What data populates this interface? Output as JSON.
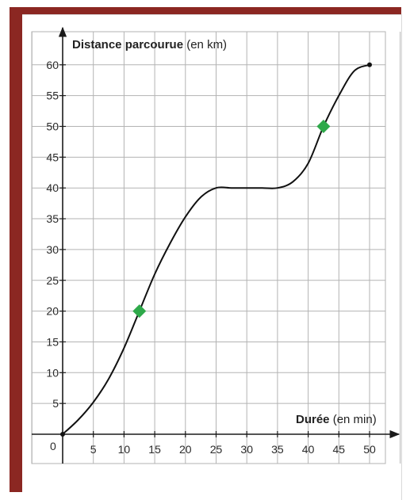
{
  "chart_data": {
    "type": "line",
    "xlabel": "Durée",
    "xlabel_unit": "(en min)",
    "ylabel": "Distance parcourue",
    "ylabel_unit": "(en km)",
    "origin_label": "0",
    "xlim": [
      0,
      55
    ],
    "ylim": [
      0,
      60
    ],
    "grid": true,
    "x_ticks": [
      5,
      10,
      15,
      20,
      25,
      30,
      35,
      40,
      45,
      50
    ],
    "y_ticks": [
      5,
      10,
      15,
      20,
      25,
      30,
      35,
      40,
      45,
      50,
      55,
      60
    ],
    "series": [
      {
        "x": [
          0,
          2.5,
          5,
          7.5,
          10,
          12.5,
          15,
          17.5,
          20,
          22.5,
          25,
          27.5,
          30,
          32.5,
          35,
          37.5,
          40,
          42.5,
          45,
          47.5,
          50
        ],
        "y": [
          0,
          2.3,
          5.2,
          9,
          14,
          20,
          26,
          31,
          35.3,
          38.5,
          40,
          40,
          40,
          40,
          40,
          41,
          44,
          50,
          55,
          59,
          60
        ],
        "color": "#111111"
      }
    ],
    "markers": [
      {
        "x": 12.5,
        "y": 20,
        "color": "#2ea94a"
      },
      {
        "x": 42.5,
        "y": 50,
        "color": "#2ea94a"
      }
    ],
    "endpoints": [
      {
        "x": 0,
        "y": 0
      },
      {
        "x": 50,
        "y": 60
      }
    ],
    "grid_color": "#b3b3b3",
    "frame_color": "#8b2722"
  }
}
